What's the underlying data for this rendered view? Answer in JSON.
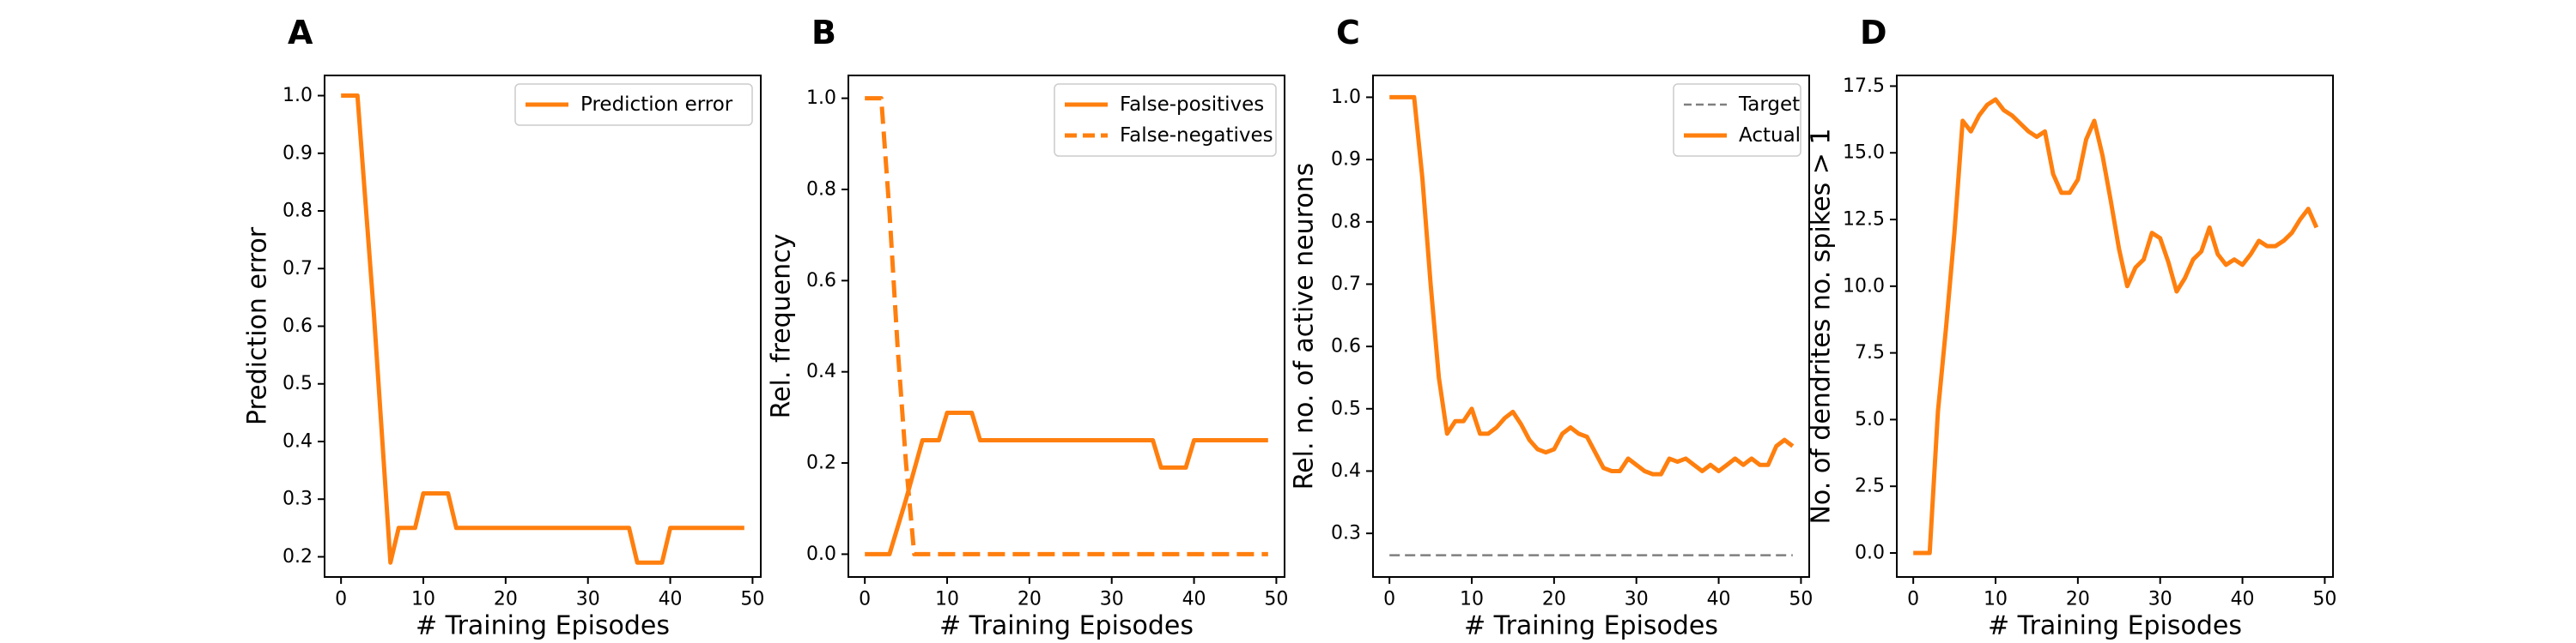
{
  "colors": {
    "series": "#ff7f0e",
    "target": "#7f7f7f"
  },
  "chart_data": [
    {
      "panel": "A",
      "type": "line",
      "xlabel": "# Training Episodes",
      "ylabel": "Prediction error",
      "xlim": [
        -2,
        51
      ],
      "ylim": [
        0.165,
        1.035
      ],
      "xticks": [
        0,
        10,
        20,
        30,
        40,
        50
      ],
      "yticks": [
        0.2,
        0.3,
        0.4,
        0.5,
        0.6,
        0.7,
        0.8,
        0.9,
        1.0
      ],
      "ytick_labels": [
        "0.2",
        "0.3",
        "0.4",
        "0.5",
        "0.6",
        "0.7",
        "0.8",
        "0.9",
        "1.0"
      ],
      "legend": "top-right",
      "grid": false,
      "series": [
        {
          "name": "Prediction error",
          "style": "solid",
          "color": "#ff7f0e",
          "x": [
            0,
            2,
            4,
            6,
            7,
            9,
            10,
            12,
            13,
            14,
            20,
            25,
            30,
            35,
            36,
            38,
            39,
            40,
            45,
            49
          ],
          "y": [
            1.0,
            1.0,
            0.62,
            0.19,
            0.25,
            0.25,
            0.31,
            0.31,
            0.31,
            0.25,
            0.25,
            0.25,
            0.25,
            0.25,
            0.19,
            0.19,
            0.19,
            0.25,
            0.25,
            0.25
          ]
        }
      ]
    },
    {
      "panel": "B",
      "type": "line",
      "xlabel": "# Training Episodes",
      "ylabel": "Rel. frequency",
      "xlim": [
        -2,
        51
      ],
      "ylim": [
        -0.05,
        1.05
      ],
      "xticks": [
        0,
        10,
        20,
        30,
        40,
        50
      ],
      "yticks": [
        0.0,
        0.2,
        0.4,
        0.6,
        0.8,
        1.0
      ],
      "ytick_labels": [
        "0.0",
        "0.2",
        "0.4",
        "0.6",
        "0.8",
        "1.0"
      ],
      "legend": "top-right",
      "grid": false,
      "series": [
        {
          "name": "False-positives",
          "style": "solid",
          "color": "#ff7f0e",
          "x": [
            0,
            3,
            5,
            7,
            9,
            10,
            11,
            13,
            14,
            20,
            30,
            35,
            36,
            38,
            39,
            40,
            45,
            49
          ],
          "y": [
            0.0,
            0.0,
            0.12,
            0.25,
            0.25,
            0.31,
            0.31,
            0.31,
            0.25,
            0.25,
            0.25,
            0.25,
            0.19,
            0.19,
            0.19,
            0.25,
            0.25,
            0.25
          ]
        },
        {
          "name": "False-negatives",
          "style": "dashed",
          "color": "#ff7f0e",
          "x": [
            0,
            2,
            3,
            4,
            5,
            6,
            7,
            10,
            20,
            30,
            40,
            49
          ],
          "y": [
            1.0,
            1.0,
            0.75,
            0.45,
            0.2,
            0.0,
            0.0,
            0.0,
            0.0,
            0.0,
            0.0,
            0.0
          ]
        }
      ]
    },
    {
      "panel": "C",
      "type": "line",
      "xlabel": "# Training Episodes",
      "ylabel": "Rel. no. of active neurons",
      "xlim": [
        -2,
        51
      ],
      "ylim": [
        0.23,
        1.035
      ],
      "xticks": [
        0,
        10,
        20,
        30,
        40,
        50
      ],
      "yticks": [
        0.3,
        0.4,
        0.5,
        0.6,
        0.7,
        0.8,
        0.9,
        1.0
      ],
      "ytick_labels": [
        "0.3",
        "0.4",
        "0.5",
        "0.6",
        "0.7",
        "0.8",
        "0.9",
        "1.0"
      ],
      "legend": "top-right",
      "grid": false,
      "series": [
        {
          "name": "Target",
          "style": "dashed",
          "color": "#7f7f7f",
          "x": [
            0,
            49
          ],
          "y": [
            0.265,
            0.265
          ]
        },
        {
          "name": "Actual",
          "style": "solid",
          "color": "#ff7f0e",
          "x": [
            0,
            1,
            2,
            3,
            4,
            5,
            6,
            7,
            8,
            9,
            10,
            11,
            12,
            13,
            14,
            15,
            16,
            17,
            18,
            19,
            20,
            21,
            22,
            23,
            24,
            25,
            26,
            27,
            28,
            29,
            30,
            31,
            32,
            33,
            34,
            35,
            36,
            37,
            38,
            39,
            40,
            41,
            42,
            43,
            44,
            45,
            46,
            47,
            48,
            49
          ],
          "y": [
            1.0,
            1.0,
            1.0,
            1.0,
            0.87,
            0.7,
            0.55,
            0.46,
            0.48,
            0.48,
            0.5,
            0.46,
            0.46,
            0.47,
            0.485,
            0.495,
            0.475,
            0.45,
            0.435,
            0.43,
            0.435,
            0.46,
            0.47,
            0.46,
            0.455,
            0.43,
            0.405,
            0.4,
            0.4,
            0.42,
            0.41,
            0.4,
            0.395,
            0.395,
            0.42,
            0.415,
            0.42,
            0.41,
            0.4,
            0.41,
            0.4,
            0.41,
            0.42,
            0.41,
            0.42,
            0.41,
            0.41,
            0.44,
            0.45,
            0.44
          ]
        }
      ]
    },
    {
      "panel": "D",
      "type": "line",
      "xlabel": "# Training Episodes",
      "ylabel": "No. of dendrites no. spikes > 1",
      "xlim": [
        -2,
        51
      ],
      "ylim": [
        -0.9,
        17.9
      ],
      "xticks": [
        0,
        10,
        20,
        30,
        40,
        50
      ],
      "yticks": [
        0.0,
        2.5,
        5.0,
        7.5,
        10.0,
        12.5,
        15.0,
        17.5
      ],
      "ytick_labels": [
        "0.0",
        "2.5",
        "5.0",
        "7.5",
        "10.0",
        "12.5",
        "15.0",
        "17.5"
      ],
      "legend": "none",
      "grid": false,
      "series": [
        {
          "style": "solid",
          "color": "#ff7f0e",
          "x": [
            0,
            1,
            2,
            3,
            4,
            5,
            6,
            7,
            8,
            9,
            10,
            11,
            12,
            13,
            14,
            15,
            16,
            17,
            18,
            19,
            20,
            21,
            22,
            23,
            24,
            25,
            26,
            27,
            28,
            29,
            30,
            31,
            32,
            33,
            34,
            35,
            36,
            37,
            38,
            39,
            40,
            41,
            42,
            43,
            44,
            45,
            46,
            47,
            48,
            49
          ],
          "y": [
            0,
            0,
            0,
            5.3,
            8.5,
            12.0,
            16.2,
            15.8,
            16.4,
            16.8,
            17.0,
            16.6,
            16.4,
            16.1,
            15.8,
            15.6,
            15.8,
            14.2,
            13.5,
            13.5,
            14.0,
            15.5,
            16.2,
            14.9,
            13.2,
            11.4,
            10.0,
            10.7,
            11.0,
            12.0,
            11.8,
            10.9,
            9.8,
            10.3,
            11.0,
            11.3,
            12.2,
            11.2,
            10.8,
            11.0,
            10.8,
            11.2,
            11.7,
            11.5,
            11.5,
            11.7,
            12.0,
            12.5,
            12.9,
            12.2
          ]
        }
      ]
    }
  ]
}
